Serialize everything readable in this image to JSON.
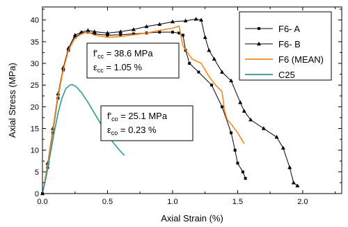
{
  "chart_data": {
    "type": "line",
    "xlabel": "Axial Strain (%)",
    "ylabel": "Axial Stress (MPa)",
    "xlim": [
      0,
      2.3
    ],
    "ylim": [
      0,
      43
    ],
    "xticks": [
      0,
      0.5,
      1.0,
      1.5,
      2.0
    ],
    "xtick_labels": [
      "0.0",
      "0.5",
      "1.0",
      "1.5",
      "2.0"
    ],
    "yticks": [
      0,
      5,
      10,
      15,
      20,
      25,
      30,
      35,
      40
    ],
    "ytick_labels": [
      "0",
      "5",
      "10",
      "15",
      "20",
      "25",
      "30",
      "35",
      "40"
    ],
    "grid": false,
    "legend_position": "top-right",
    "series": [
      {
        "name": "F6- A",
        "color": "#000000",
        "marker": "square",
        "points": [
          [
            0,
            0
          ],
          [
            0.04,
            6
          ],
          [
            0.08,
            14
          ],
          [
            0.12,
            22
          ],
          [
            0.16,
            28.5
          ],
          [
            0.2,
            33
          ],
          [
            0.25,
            36
          ],
          [
            0.3,
            37
          ],
          [
            0.35,
            37.2
          ],
          [
            0.4,
            36.8
          ],
          [
            0.5,
            36.5
          ],
          [
            0.6,
            36.6
          ],
          [
            0.7,
            36.8
          ],
          [
            0.8,
            37
          ],
          [
            0.9,
            37.2
          ],
          [
            1.0,
            37.2
          ],
          [
            1.05,
            37
          ],
          [
            1.08,
            36.5
          ],
          [
            1.1,
            33
          ],
          [
            1.13,
            30
          ],
          [
            1.2,
            28
          ],
          [
            1.3,
            25
          ],
          [
            1.38,
            20
          ],
          [
            1.45,
            14
          ],
          [
            1.48,
            10
          ],
          [
            1.5,
            7
          ],
          [
            1.54,
            5
          ],
          [
            1.56,
            3.5
          ]
        ]
      },
      {
        "name": "F6- B",
        "color": "#000000",
        "marker": "triangle",
        "points": [
          [
            0,
            0
          ],
          [
            0.04,
            7
          ],
          [
            0.08,
            15
          ],
          [
            0.12,
            23
          ],
          [
            0.16,
            29
          ],
          [
            0.2,
            33.5
          ],
          [
            0.25,
            36.5
          ],
          [
            0.3,
            37.2
          ],
          [
            0.35,
            37.6
          ],
          [
            0.4,
            37.3
          ],
          [
            0.5,
            37
          ],
          [
            0.6,
            37.3
          ],
          [
            0.7,
            37.8
          ],
          [
            0.8,
            38.5
          ],
          [
            0.9,
            39
          ],
          [
            1.0,
            39.6
          ],
          [
            1.1,
            39.8
          ],
          [
            1.18,
            40.2
          ],
          [
            1.22,
            40
          ],
          [
            1.25,
            36
          ],
          [
            1.28,
            33
          ],
          [
            1.32,
            31
          ],
          [
            1.38,
            28
          ],
          [
            1.45,
            26
          ],
          [
            1.52,
            21
          ],
          [
            1.55,
            19
          ],
          [
            1.6,
            17
          ],
          [
            1.7,
            15
          ],
          [
            1.8,
            13
          ],
          [
            1.85,
            10.5
          ],
          [
            1.9,
            6
          ],
          [
            1.93,
            2.5
          ],
          [
            1.96,
            1.8
          ]
        ]
      },
      {
        "name": "F6 (MEAN)",
        "color": "#f5891f",
        "marker": "none",
        "points": [
          [
            0,
            0
          ],
          [
            0.04,
            6.5
          ],
          [
            0.08,
            14.5
          ],
          [
            0.12,
            22.5
          ],
          [
            0.16,
            28.5
          ],
          [
            0.2,
            33
          ],
          [
            0.25,
            35.8
          ],
          [
            0.3,
            36.8
          ],
          [
            0.35,
            37.2
          ],
          [
            0.4,
            36.5
          ],
          [
            0.5,
            36
          ],
          [
            0.6,
            36.2
          ],
          [
            0.7,
            36.6
          ],
          [
            0.8,
            37
          ],
          [
            0.9,
            37.6
          ],
          [
            1.0,
            38.1
          ],
          [
            1.05,
            38.6
          ],
          [
            1.08,
            34
          ],
          [
            1.15,
            31
          ],
          [
            1.22,
            30
          ],
          [
            1.28,
            27
          ],
          [
            1.33,
            25
          ],
          [
            1.38,
            23.5
          ],
          [
            1.4,
            19
          ],
          [
            1.42,
            17
          ],
          [
            1.45,
            16
          ],
          [
            1.5,
            14
          ],
          [
            1.55,
            11.5
          ]
        ]
      },
      {
        "name": "C25",
        "color": "#2f9a9a",
        "marker": "none",
        "points": [
          [
            0,
            0
          ],
          [
            0.03,
            4
          ],
          [
            0.06,
            9
          ],
          [
            0.09,
            14
          ],
          [
            0.12,
            18.5
          ],
          [
            0.15,
            22
          ],
          [
            0.18,
            24.2
          ],
          [
            0.21,
            25
          ],
          [
            0.23,
            25.1
          ],
          [
            0.26,
            24.6
          ],
          [
            0.3,
            23.3
          ],
          [
            0.35,
            21
          ],
          [
            0.4,
            18.5
          ],
          [
            0.45,
            16
          ],
          [
            0.5,
            13.5
          ],
          [
            0.55,
            11.5
          ],
          [
            0.6,
            9.7
          ],
          [
            0.63,
            8.8
          ]
        ]
      }
    ],
    "annotations": [
      {
        "id": "cc",
        "line1": {
          "main": "f'",
          "sub": "cc",
          "rest": " = 38.6 MPa"
        },
        "line2": {
          "main": "ε",
          "sub": "cc",
          "rest": " = 1.05 %"
        }
      },
      {
        "id": "co",
        "line1": {
          "main": "f'",
          "sub": "co",
          "rest": " = 25.1 MPa"
        },
        "line2": {
          "main": "ε",
          "sub": "co",
          "rest": " = 0.23 %"
        }
      }
    ]
  }
}
